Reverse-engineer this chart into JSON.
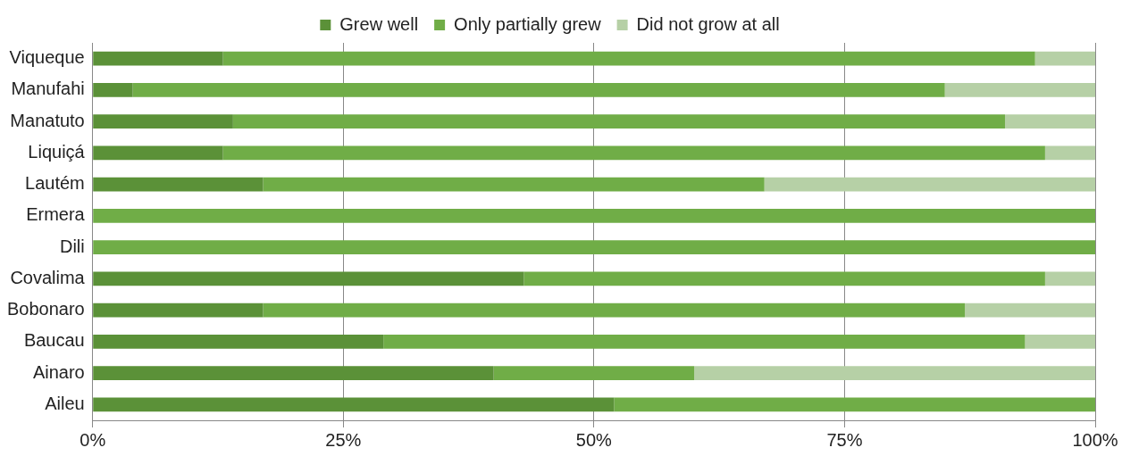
{
  "chart_data": {
    "type": "bar",
    "orientation": "horizontal",
    "stacked": true,
    "categories": [
      "Viqueque",
      "Manufahi",
      "Manatuto",
      "Liquiçá",
      "Lautém",
      "Ermera",
      "Dili",
      "Covalima",
      "Bobonaro",
      "Baucau",
      "Ainaro",
      "Aileu"
    ],
    "series": [
      {
        "name": "Grew well",
        "color": "#5b9138",
        "values": [
          13,
          4,
          14,
          13,
          17,
          0,
          0,
          43,
          17,
          29,
          40,
          52
        ]
      },
      {
        "name": "Only partially grew",
        "color": "#70ad47",
        "values": [
          81,
          81,
          77,
          82,
          50,
          100,
          100,
          52,
          70,
          64,
          20,
          48
        ]
      },
      {
        "name": "Did not grow at all",
        "color": "#b6d0a6",
        "values": [
          6,
          15,
          9,
          5,
          33,
          0,
          0,
          5,
          13,
          7,
          40,
          0
        ]
      }
    ],
    "xlim": [
      0,
      100
    ],
    "xticks": [
      {
        "value": 0,
        "label": "0%"
      },
      {
        "value": 25,
        "label": "25%"
      },
      {
        "value": 50,
        "label": "50%"
      },
      {
        "value": 75,
        "label": "75%"
      },
      {
        "value": 100,
        "label": "100%"
      }
    ],
    "grid": "x",
    "legend": "top"
  }
}
